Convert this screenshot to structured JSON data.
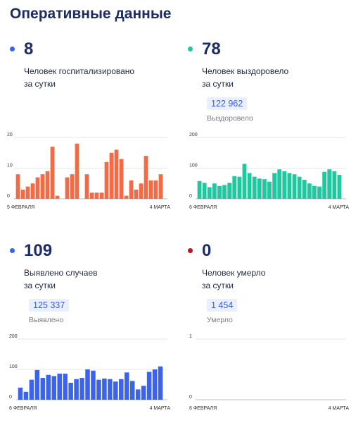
{
  "page_title": "Оперативные данные",
  "panels": [
    {
      "id": "hospitalized",
      "value": "8",
      "desc_line1": "Человек госпитализировано",
      "desc_line2": "за сутки",
      "color": "#f46a45",
      "dot_color": "#3a64e8"
    },
    {
      "id": "recovered",
      "value": "78",
      "desc_line1": "Человек выздоровело",
      "desc_line2": "за сутки",
      "total": "122 962",
      "total_label": "Выздоровело",
      "color": "#1fc9a0",
      "dot_color": "#1fc9a0"
    },
    {
      "id": "detected",
      "value": "109",
      "desc_line1": "Выявлено случаев",
      "desc_line2": "за сутки",
      "total": "125 337",
      "total_label": "Выявлено",
      "color": "#3a64f0",
      "dot_color": "#3a64e8"
    },
    {
      "id": "died",
      "value": "0",
      "desc_line1": "Человек умерло",
      "desc_line2": "за сутки",
      "total": "1 454",
      "total_label": "Умерло",
      "color": "#d81b1b",
      "dot_color": "#c4141a"
    }
  ],
  "chart_data": [
    {
      "type": "bar",
      "series": "hospitalized",
      "x_start_label": "5 ФЕВРАЛЯ",
      "x_end_label": "4 МАРТА",
      "yticks": [
        0,
        10,
        20
      ],
      "ylim": [
        0,
        20
      ],
      "values": [
        8,
        3,
        4,
        5,
        7,
        8,
        9,
        17,
        1,
        0,
        7,
        8,
        18,
        0,
        8,
        2,
        2,
        2,
        12,
        15,
        16,
        13,
        1,
        6,
        3,
        5,
        14,
        6,
        6,
        8
      ],
      "color": "#f46a45"
    },
    {
      "type": "bar",
      "series": "recovered",
      "x_start_label": "6 ФЕВРАЛЯ",
      "x_end_label": "4 МАРТА",
      "yticks": [
        0,
        100,
        200
      ],
      "ylim": [
        0,
        200
      ],
      "values": [
        58,
        52,
        38,
        50,
        42,
        45,
        52,
        74,
        72,
        114,
        84,
        72,
        66,
        64,
        56,
        84,
        96,
        90,
        84,
        80,
        72,
        62,
        50,
        42,
        40,
        88,
        96,
        90,
        78
      ],
      "color": "#1fc9a0"
    },
    {
      "type": "bar",
      "series": "detected",
      "x_start_label": "6 ФЕВРАЛЯ",
      "x_end_label": "4 МАРТА",
      "yticks": [
        0,
        100,
        200
      ],
      "ylim": [
        0,
        200
      ],
      "values": [
        40,
        26,
        66,
        98,
        72,
        82,
        78,
        86,
        86,
        56,
        68,
        72,
        100,
        96,
        66,
        70,
        68,
        60,
        68,
        90,
        62,
        34,
        46,
        92,
        100,
        110
      ],
      "color": "#3a64f0"
    },
    {
      "type": "bar",
      "series": "died",
      "x_start_label": "6 ФЕВРАЛЯ",
      "x_end_label": "4 МАРТА",
      "yticks": [
        0,
        1
      ],
      "ylim": [
        0,
        1
      ],
      "values": [],
      "color": "#d81b1b"
    }
  ]
}
